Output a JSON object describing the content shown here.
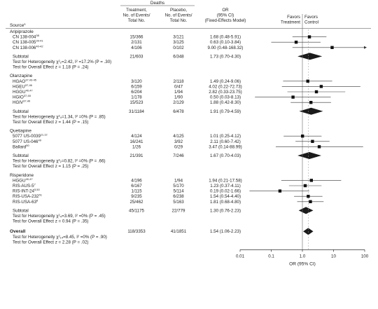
{
  "chart_data": {
    "type": "forest",
    "header": {
      "deaths": "Deaths",
      "source": "Source",
      "source_mark": "a",
      "treatment": [
        "Treatment,",
        "No. of Events/",
        "Total No."
      ],
      "placebo": [
        "Placebo,",
        "No. of Events/",
        "Total No."
      ],
      "or": [
        "OR",
        "(95% CI)",
        "(Fixed-Effects Model)"
      ],
      "favors_treatment": [
        "Favors",
        "Treatment"
      ],
      "favors_control": [
        "Favors",
        "Control"
      ]
    },
    "x_scale": "log",
    "xlim": [
      0.01,
      100
    ],
    "x_ticks": [
      "0.01",
      "0.1",
      "1.0",
      "10",
      "100"
    ],
    "xlabel": "OR (95% CI)",
    "groups": [
      {
        "name": "Aripiprazole",
        "studies": [
          {
            "name": "CN 138-004",
            "ref": "38",
            "treatment": "15/366",
            "placebo": "3/121",
            "or_text": "1.68 (0.48-5.91)",
            "or": 1.68,
            "lo": 0.48,
            "hi": 5.91
          },
          {
            "name": "CN 138-005",
            "ref": "39-41",
            "treatment": "2/131",
            "placebo": "3/125",
            "or_text": "0.63 (0.10-3.84)",
            "or": 0.63,
            "lo": 0.1,
            "hi": 3.84
          },
          {
            "name": "CN 138-006",
            "ref": "40-42",
            "treatment": "4/106",
            "placebo": "0/102",
            "or_text": "9.00 (0.48-168.32)",
            "or": 9.0,
            "lo": 0.48,
            "hi": 168.32
          }
        ],
        "subtotal": {
          "label": "Subtotal",
          "treatment": "21/603",
          "placebo": "6/348",
          "or_text": "1.73 (0.70-4.30)",
          "or": 1.73,
          "lo": 0.7,
          "hi": 4.3
        },
        "heterogeneity": "Test for Heterogeneity χ²₂=2.42, I² =17.2% (P = .30)",
        "overall_effect": "Test for Overall Effect z = 1.18 (P = .24)"
      },
      {
        "name": "Olanzapine",
        "studies": [
          {
            "name": "HGAO",
            "ref": "37,43-45",
            "treatment": "3/120",
            "placebo": "2/118",
            "or_text": "1.49 (0.24-9.06)",
            "or": 1.49,
            "lo": 0.24,
            "hi": 9.06
          },
          {
            "name": "HGEU",
            "ref": "37,46",
            "treatment": "6/159",
            "placebo": "0/47",
            "or_text": "4.02 (0.22-72.73)",
            "or": 4.02,
            "lo": 0.22,
            "hi": 72.73
          },
          {
            "name": "HGGU",
            "ref": "40,47",
            "treatment": "6/204",
            "placebo": "1/94",
            "or_text": "2.82 (0.33-23.75)",
            "or": 2.82,
            "lo": 0.33,
            "hi": 23.75
          },
          {
            "name": "HGIO",
            "ref": "37,48",
            "treatment": "1/178",
            "placebo": "1/90",
            "or_text": "0.50 (0.03-8.13)",
            "or": 0.5,
            "lo": 0.03,
            "hi": 8.13
          },
          {
            "name": "HGIV",
            "ref": "37,49",
            "treatment": "15/523",
            "placebo": "2/129",
            "or_text": "1.88 (0.42-8.30)",
            "or": 1.88,
            "lo": 0.42,
            "hi": 8.3
          }
        ],
        "subtotal": {
          "label": "Subtotal",
          "treatment": "31/1184",
          "placebo": "6/478",
          "or_text": "1.91 (0.79-4.59)",
          "or": 1.91,
          "lo": 0.79,
          "hi": 4.59
        },
        "heterogeneity": "Test for Heterogeneity χ²₄=1.34, I² =0% (P = .85)",
        "overall_effect": "Test for Overall Effect z = 1.44 (P = .15)"
      },
      {
        "name": "Quetiapine",
        "studies": [
          {
            "name": "5077 US-0039",
            "ref": "11,12",
            "treatment": "4/124",
            "placebo": "4/125",
            "or_text": "1.01 (0.25-4.12)",
            "or": 1.01,
            "lo": 0.25,
            "hi": 4.12
          },
          {
            "name": "5077 US-046",
            "ref": "49",
            "treatment": "16/241",
            "placebo": "3/92",
            "or_text": "2.11 (0.60-7.42)",
            "or": 2.11,
            "lo": 0.6,
            "hi": 7.42
          },
          {
            "name": "Ballard",
            "ref": "50",
            "treatment": "1/26",
            "placebo": "0/29",
            "or_text": "3.47 (0.14-88.99)",
            "or": 3.47,
            "lo": 0.14,
            "hi": 88.99
          }
        ],
        "subtotal": {
          "label": "Subtotal",
          "treatment": "21/391",
          "placebo": "7/246",
          "or_text": "1.67 (0.70-4.03)",
          "or": 1.67,
          "lo": 0.7,
          "hi": 4.03
        },
        "heterogeneity": "Test for Heterogeneity χ²₂=0.82, I² =0% (P = .66)",
        "overall_effect": "Test for Overall Effect z = 1.15 (P = .25)"
      },
      {
        "name": "Risperidone",
        "studies": [
          {
            "name": "HGGU",
            "ref": "40,47",
            "treatment": "4/196",
            "placebo": "1/94",
            "or_text": "1.94 (0.21-17.58)",
            "or": 1.94,
            "lo": 0.21,
            "hi": 17.58
          },
          {
            "name": "RIS-AUS-5",
            "ref": "7",
            "treatment": "6/167",
            "placebo": "5/170",
            "or_text": "1.23 (0.37-4.11)",
            "or": 1.23,
            "lo": 0.37,
            "hi": 4.11
          },
          {
            "name": "RIS-INT-24",
            "ref": "5,50",
            "treatment": "1/115",
            "placebo": "5/114",
            "or_text": "0.19 (0.02-1.66)",
            "or": 0.19,
            "lo": 0.02,
            "hi": 1.66
          },
          {
            "name": "RIS-USA-232",
            "ref": "51",
            "treatment": "9/235",
            "placebo": "6/238",
            "or_text": "1.54 (0.54-4.40)",
            "or": 1.54,
            "lo": 0.54,
            "hi": 4.4
          },
          {
            "name": "RIS-USA-63",
            "ref": "8",
            "treatment": "25/462",
            "placebo": "5/163",
            "or_text": "1.81 (0.68-4.80)",
            "or": 1.81,
            "lo": 0.68,
            "hi": 4.8
          }
        ],
        "subtotal": {
          "label": "Subtotal",
          "treatment": "45/1175",
          "placebo": "22/779",
          "or_text": "1.30 (0.76-2.23)",
          "or": 1.3,
          "lo": 0.76,
          "hi": 2.23
        },
        "heterogeneity": "Test for Heterogeneity χ²₄=3.69, I² =0% (P = .45)",
        "overall_effect": "Test for Overall Effect z = 0.94 (P = .35)"
      }
    ],
    "overall": {
      "label": "Overall",
      "treatment": "118/3353",
      "placebo": "41/1851",
      "or_text": "1.54 (1.06-2.23)",
      "or": 1.54,
      "lo": 1.06,
      "hi": 2.23,
      "heterogeneity": "Test for Heterogeneity χ²₁₄=8.45, I² =0% (P = .90)",
      "overall_effect": "Test for Overall Effect z = 2.28 (P = .02)"
    }
  }
}
